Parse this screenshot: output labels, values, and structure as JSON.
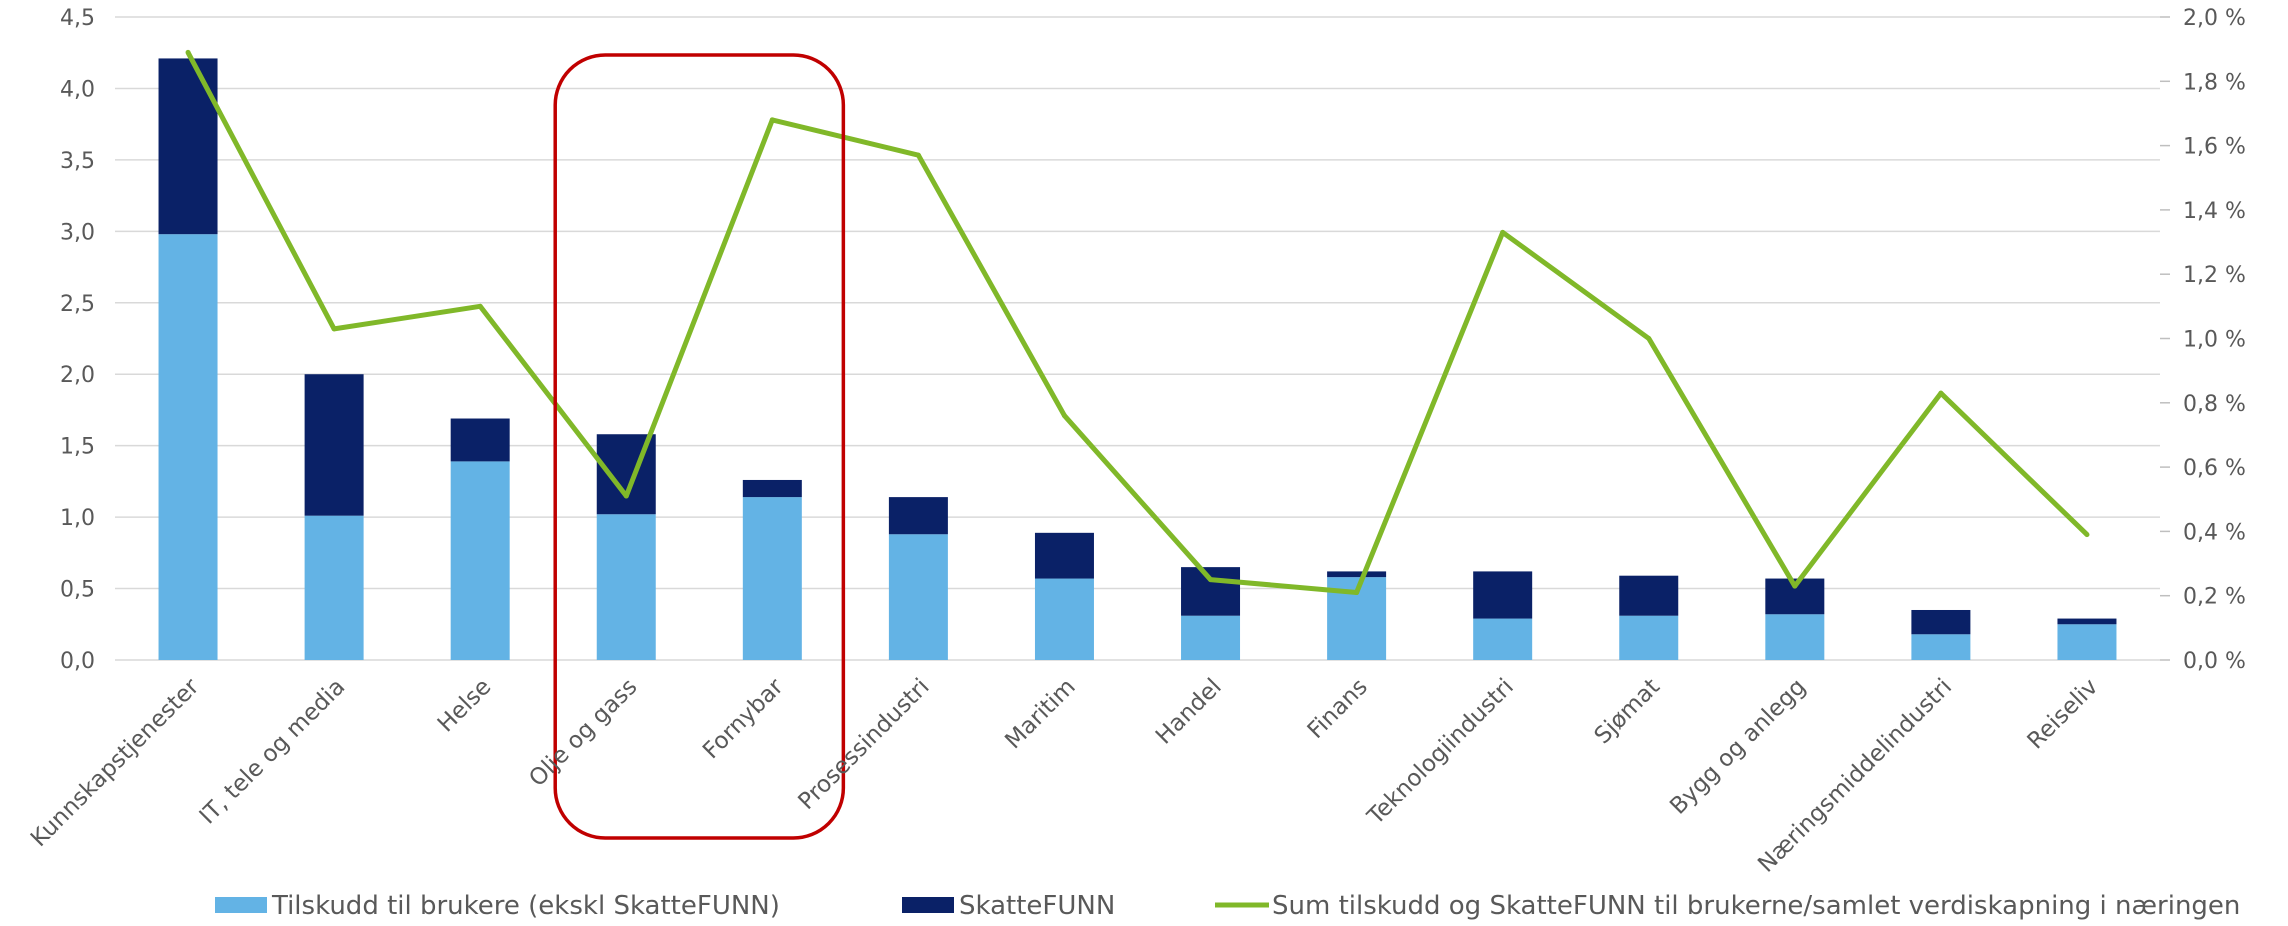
{
  "chart_data": {
    "type": "bar",
    "stacked": true,
    "categories": [
      "Kunnskapstjenester",
      "IT, tele og media",
      "Helse",
      "Olje og gass",
      "Fornybar",
      "Prosessindustri",
      "Maritim",
      "Handel",
      "Finans",
      "Teknologiindustri",
      "Sjømat",
      "Bygg og anlegg",
      "Næringsmiddelindustri",
      "Reiseliv"
    ],
    "series": [
      {
        "name": "Tilskudd til brukere (ekskl SkatteFUNN)",
        "type": "bar",
        "axis": "left",
        "color": "#63b3e5",
        "values": [
          2.98,
          1.01,
          1.39,
          1.02,
          1.14,
          0.88,
          0.57,
          0.31,
          0.58,
          0.29,
          0.31,
          0.32,
          0.18,
          0.25
        ]
      },
      {
        "name": "SkatteFUNN",
        "type": "bar",
        "axis": "left",
        "color": "#0a2167",
        "values": [
          1.23,
          0.99,
          0.3,
          0.56,
          0.12,
          0.26,
          0.32,
          0.34,
          0.04,
          0.33,
          0.28,
          0.25,
          0.17,
          0.04
        ]
      },
      {
        "name": "Sum tilskudd og SkatteFUNN til brukerne/samlet verdiskapning i næringen",
        "type": "line",
        "axis": "right",
        "color": "#80b829",
        "values": [
          1.89,
          1.03,
          1.1,
          0.51,
          1.68,
          1.57,
          0.76,
          0.25,
          0.21,
          1.33,
          1.0,
          0.23,
          0.83,
          0.39
        ]
      }
    ],
    "y_left": {
      "min": 0,
      "max": 4.5,
      "step": 0.5,
      "tick_labels": [
        "0,0",
        "0,5",
        "1,0",
        "1,5",
        "2,0",
        "2,5",
        "3,0",
        "3,5",
        "4,0",
        "4,5"
      ]
    },
    "y_right": {
      "min": 0,
      "max": 2.0,
      "step": 0.2,
      "tick_labels": [
        "0,0 %",
        "0,2 %",
        "0,4 %",
        "0,6 %",
        "0,8 %",
        "1,0 %",
        "1,2 %",
        "1,4 %",
        "1,6 %",
        "1,8 %",
        "2,0 %"
      ]
    },
    "grid": true,
    "legend_position": "bottom",
    "highlight": {
      "categories": [
        "Olje og gass",
        "Fornybar"
      ],
      "color": "#c00000"
    }
  }
}
